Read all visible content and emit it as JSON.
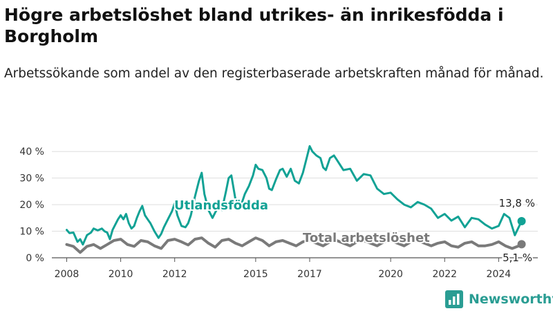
{
  "title": "Högre arbetslöshet bland utrikes- än inrikesfödda i Borgholm",
  "subtitle": "Arbetssökande som andel av den registerbaserade arbetskraften månad för månad.",
  "brand": {
    "name": "Newsworthy",
    "icon": "bar-chart-icon",
    "color": "#2a9d93"
  },
  "chart_data": {
    "type": "line",
    "title": "Högre arbetslöshet bland utrikes- än inrikesfödda i Borgholm",
    "subtitle": "Arbetssökande som andel av den registerbaserade arbetskraften månad för månad.",
    "xlabel": "",
    "ylabel": "",
    "x_ticks": [
      "2008",
      "2010",
      "2012",
      "2015",
      "2017",
      "2020",
      "2022",
      "2024"
    ],
    "y_ticks": [
      "0 %",
      "10 %",
      "20 %",
      "30 %",
      "40 %"
    ],
    "ylim": [
      0,
      45
    ],
    "grid": "horizontal",
    "series": [
      {
        "name": "Utlandsfödda",
        "color": "#12a295",
        "end_label": "13,8 %",
        "x": [
          2008.0,
          2008.1,
          2008.25,
          2008.4,
          2008.5,
          2008.6,
          2008.75,
          2008.9,
          2009.0,
          2009.15,
          2009.3,
          2009.4,
          2009.5,
          2009.6,
          2009.7,
          2009.8,
          2009.9,
          2010.0,
          2010.1,
          2010.2,
          2010.3,
          2010.4,
          2010.5,
          2010.6,
          2010.7,
          2010.8,
          2010.9,
          2011.0,
          2011.1,
          2011.25,
          2011.4,
          2011.5,
          2011.6,
          2011.75,
          2011.9,
          2012.0,
          2012.1,
          2012.25,
          2012.4,
          2012.5,
          2012.6,
          2012.75,
          2012.9,
          2013.0,
          2013.1,
          2013.25,
          2013.4,
          2013.5,
          2013.6,
          2013.75,
          2013.9,
          2014.0,
          2014.1,
          2014.25,
          2014.4,
          2014.5,
          2014.6,
          2014.75,
          2014.9,
          2015.0,
          2015.1,
          2015.25,
          2015.4,
          2015.5,
          2015.6,
          2015.75,
          2015.9,
          2016.0,
          2016.15,
          2016.3,
          2016.45,
          2016.6,
          2016.75,
          2016.9,
          2017.0,
          2017.1,
          2017.25,
          2017.4,
          2017.5,
          2017.6,
          2017.75,
          2017.9,
          2018.0,
          2018.25,
          2018.5,
          2018.75,
          2019.0,
          2019.25,
          2019.5,
          2019.75,
          2020.0,
          2020.25,
          2020.5,
          2020.75,
          2021.0,
          2021.25,
          2021.5,
          2021.75,
          2022.0,
          2022.25,
          2022.5,
          2022.75,
          2023.0,
          2023.25,
          2023.5,
          2023.75,
          2024.0,
          2024.2,
          2024.4,
          2024.6,
          2024.85
        ],
        "values": [
          10.5,
          9.3,
          9.5,
          6.0,
          7.0,
          5.0,
          8.5,
          9.5,
          11.0,
          10.3,
          11.0,
          10.0,
          9.5,
          7.0,
          10.5,
          12.5,
          14.5,
          16.0,
          14.5,
          16.5,
          13.0,
          11.0,
          12.0,
          15.0,
          17.5,
          19.5,
          16.0,
          14.5,
          13.0,
          10.0,
          7.5,
          9.0,
          11.5,
          14.5,
          17.5,
          20.5,
          16.0,
          12.0,
          11.5,
          13.0,
          16.0,
          23.0,
          29.0,
          32.0,
          24.0,
          18.0,
          15.0,
          17.0,
          19.0,
          18.0,
          25.0,
          30.0,
          31.0,
          22.0,
          19.0,
          21.0,
          24.0,
          27.0,
          31.0,
          35.0,
          33.5,
          33.0,
          30.0,
          26.0,
          25.5,
          29.5,
          33.0,
          33.5,
          30.5,
          33.5,
          29.0,
          28.0,
          32.0,
          38.0,
          42.0,
          40.0,
          38.5,
          37.5,
          34.0,
          33.0,
          37.5,
          38.5,
          37.0,
          33.0,
          33.5,
          29.0,
          31.5,
          31.0,
          26.0,
          24.0,
          24.5,
          22.0,
          20.0,
          19.0,
          21.0,
          20.0,
          18.5,
          15.0,
          16.5,
          14.0,
          15.5,
          11.5,
          15.0,
          14.5,
          12.5,
          11.0,
          12.0,
          16.5,
          15.0,
          8.5,
          13.8
        ]
      },
      {
        "name": "Total arbetslöshet",
        "color": "#7a7a7a",
        "end_label": "5,1 %",
        "x": [
          2008.0,
          2008.25,
          2008.5,
          2008.75,
          2009.0,
          2009.25,
          2009.5,
          2009.75,
          2010.0,
          2010.25,
          2010.5,
          2010.75,
          2011.0,
          2011.25,
          2011.5,
          2011.75,
          2012.0,
          2012.25,
          2012.5,
          2012.75,
          2013.0,
          2013.25,
          2013.5,
          2013.75,
          2014.0,
          2014.25,
          2014.5,
          2014.75,
          2015.0,
          2015.25,
          2015.5,
          2015.75,
          2016.0,
          2016.25,
          2016.5,
          2016.75,
          2017.0,
          2017.25,
          2017.5,
          2017.75,
          2018.0,
          2018.25,
          2018.5,
          2018.75,
          2019.0,
          2019.25,
          2019.5,
          2019.75,
          2020.0,
          2020.25,
          2020.5,
          2020.75,
          2021.0,
          2021.25,
          2021.5,
          2021.75,
          2022.0,
          2022.25,
          2022.5,
          2022.75,
          2023.0,
          2023.25,
          2023.5,
          2023.75,
          2024.0,
          2024.25,
          2024.5,
          2024.75,
          2024.85
        ],
        "values": [
          5.0,
          4.3,
          2.0,
          4.3,
          5.0,
          3.5,
          5.0,
          6.5,
          7.0,
          5.0,
          4.3,
          6.5,
          6.0,
          4.5,
          3.5,
          6.5,
          7.0,
          6.0,
          4.8,
          7.0,
          7.5,
          5.5,
          4.0,
          6.5,
          7.0,
          5.5,
          4.5,
          6.0,
          7.5,
          6.5,
          4.5,
          6.0,
          6.5,
          5.5,
          4.5,
          6.0,
          6.5,
          5.5,
          4.5,
          6.0,
          6.5,
          5.5,
          4.5,
          6.0,
          6.5,
          5.5,
          4.5,
          6.0,
          6.5,
          5.5,
          4.5,
          6.0,
          6.5,
          5.5,
          4.5,
          5.5,
          6.0,
          4.5,
          4.0,
          5.5,
          6.0,
          4.5,
          4.5,
          5.0,
          6.0,
          4.5,
          3.5,
          4.5,
          5.1
        ]
      }
    ]
  }
}
